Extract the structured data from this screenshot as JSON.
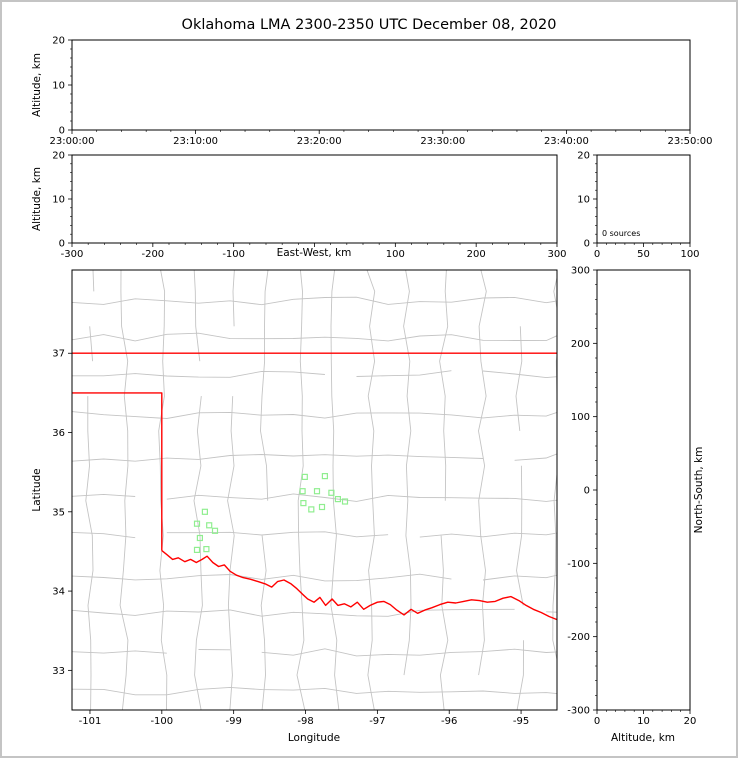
{
  "window": {
    "border_color": "#c4c4c4",
    "background": "#ffffff"
  },
  "chart_data": {
    "type": "multi-panel-lightning-map",
    "title": "Oklahoma LMA 2300-2350 UTC December 08, 2020",
    "panels": {
      "time_height": {
        "name": "Altitude vs Time",
        "ylabel": "Altitude, km",
        "ylim": [
          0,
          20
        ],
        "ytick_values": [
          0,
          10,
          20
        ],
        "ytick_labels": [
          "0",
          "10",
          "20"
        ],
        "xtick_labels": [
          "23:00:00",
          "23:10:00",
          "23:20:00",
          "23:30:00",
          "23:40:00",
          "23:50:00"
        ],
        "data_points": []
      },
      "ew_height": {
        "name": "Altitude vs East-West distance",
        "xlabel": "East-West, km",
        "ylabel": "Altitude, km",
        "xlim": [
          -300,
          300
        ],
        "ylim": [
          0,
          20
        ],
        "xtick_values": [
          -300,
          -200,
          -100,
          0,
          100,
          200,
          300
        ],
        "xtick_labels": [
          "-300",
          "-200",
          "-100",
          "",
          "100",
          "200",
          "300"
        ],
        "ytick_values": [
          0,
          10,
          20
        ],
        "ytick_labels": [
          "0",
          "10",
          "20"
        ],
        "data_points": []
      },
      "source_histogram": {
        "name": "Source count histogram",
        "annotation": "0 sources",
        "xlim": [
          0,
          100
        ],
        "ylim": [
          0,
          20
        ],
        "xtick_values": [
          0,
          50,
          100
        ],
        "xtick_labels": [
          "0",
          "50",
          "100"
        ],
        "ytick_values": [
          0,
          10,
          20
        ],
        "ytick_labels": [
          "0",
          "10",
          "20"
        ],
        "data_points": []
      },
      "map": {
        "name": "Plan view map",
        "xlabel": "Longitude",
        "ylabel": "Latitude",
        "xlim": [
          -101.25,
          -94.5
        ],
        "ylim": [
          32.5,
          38.05
        ],
        "xtick_values": [
          -101,
          -100,
          -99,
          -98,
          -97,
          -96,
          -95
        ],
        "xtick_labels": [
          "-101",
          "-100",
          "-99",
          "-98",
          "-97",
          "-96",
          "-95"
        ],
        "ytick_values": [
          33,
          34,
          35,
          36,
          37
        ],
        "ytick_labels": [
          "33",
          "34",
          "35",
          "36",
          "37"
        ],
        "county_line_color": "#c4c4c4",
        "state_border_color": "#ff0000",
        "station_marker_color": "#90EE90",
        "state_border": {
          "kansas_oklahoma_line": [
            [
              -101.25,
              37.0
            ],
            [
              -94.5,
              37.0
            ]
          ],
          "panhandle_and_west_border": [
            [
              -101.25,
              36.5
            ],
            [
              -100.0,
              36.5
            ],
            [
              -100.0,
              34.51
            ]
          ],
          "red_river": [
            [
              -100.0,
              34.51
            ],
            [
              -99.93,
              34.46
            ],
            [
              -99.85,
              34.4
            ],
            [
              -99.77,
              34.42
            ],
            [
              -99.68,
              34.37
            ],
            [
              -99.6,
              34.4
            ],
            [
              -99.52,
              34.36
            ],
            [
              -99.44,
              34.4
            ],
            [
              -99.37,
              34.44
            ],
            [
              -99.29,
              34.36
            ],
            [
              -99.21,
              34.31
            ],
            [
              -99.13,
              34.33
            ],
            [
              -99.05,
              34.25
            ],
            [
              -98.96,
              34.2
            ],
            [
              -98.87,
              34.17
            ],
            [
              -98.77,
              34.15
            ],
            [
              -98.66,
              34.12
            ],
            [
              -98.56,
              34.09
            ],
            [
              -98.47,
              34.05
            ],
            [
              -98.39,
              34.12
            ],
            [
              -98.3,
              34.14
            ],
            [
              -98.2,
              34.09
            ],
            [
              -98.12,
              34.03
            ],
            [
              -98.04,
              33.96
            ],
            [
              -97.97,
              33.9
            ],
            [
              -97.88,
              33.86
            ],
            [
              -97.8,
              33.92
            ],
            [
              -97.72,
              33.82
            ],
            [
              -97.63,
              33.9
            ],
            [
              -97.55,
              33.82
            ],
            [
              -97.46,
              33.84
            ],
            [
              -97.37,
              33.8
            ],
            [
              -97.28,
              33.86
            ],
            [
              -97.19,
              33.77
            ],
            [
              -97.1,
              33.82
            ],
            [
              -97.0,
              33.86
            ],
            [
              -96.91,
              33.87
            ],
            [
              -96.82,
              33.83
            ],
            [
              -96.73,
              33.76
            ],
            [
              -96.63,
              33.7
            ],
            [
              -96.53,
              33.77
            ],
            [
              -96.44,
              33.72
            ],
            [
              -96.34,
              33.76
            ],
            [
              -96.24,
              33.79
            ],
            [
              -96.13,
              33.83
            ],
            [
              -96.02,
              33.86
            ],
            [
              -95.91,
              33.85
            ],
            [
              -95.8,
              33.87
            ],
            [
              -95.69,
              33.89
            ],
            [
              -95.58,
              33.88
            ],
            [
              -95.47,
              33.86
            ],
            [
              -95.36,
              33.87
            ],
            [
              -95.25,
              33.91
            ],
            [
              -95.14,
              33.93
            ],
            [
              -95.03,
              33.88
            ],
            [
              -94.93,
              33.82
            ],
            [
              -94.83,
              33.77
            ],
            [
              -94.72,
              33.73
            ],
            [
              -94.61,
              33.68
            ],
            [
              -94.5,
              33.64
            ]
          ]
        },
        "lma_stations": [
          [
            -98.01,
            35.44
          ],
          [
            -97.73,
            35.45
          ],
          [
            -98.04,
            35.26
          ],
          [
            -97.84,
            35.26
          ],
          [
            -97.64,
            35.24
          ],
          [
            -98.03,
            35.11
          ],
          [
            -97.92,
            35.03
          ],
          [
            -97.77,
            35.06
          ],
          [
            -97.55,
            35.16
          ],
          [
            -97.45,
            35.13
          ],
          [
            -99.4,
            35.0
          ],
          [
            -99.51,
            34.85
          ],
          [
            -99.34,
            34.83
          ],
          [
            -99.26,
            34.76
          ],
          [
            -99.47,
            34.67
          ],
          [
            -99.38,
            34.53
          ],
          [
            -99.51,
            34.52
          ]
        ]
      },
      "ns_height": {
        "name": "North-South distance vs Altitude",
        "xlabel": "Altitude, km",
        "ylabel_right": "North-South, km",
        "xlim": [
          0,
          20
        ],
        "ylim": [
          -300,
          300
        ],
        "xtick_values": [
          0,
          10,
          20
        ],
        "xtick_labels": [
          "0",
          "10",
          "20"
        ],
        "ytick_values": [
          300,
          200,
          100,
          0,
          -100,
          -200,
          -300
        ],
        "ytick_labels": [
          "300",
          "200",
          "100",
          "0",
          "-100",
          "-200",
          "-300"
        ],
        "data_points": []
      }
    }
  }
}
